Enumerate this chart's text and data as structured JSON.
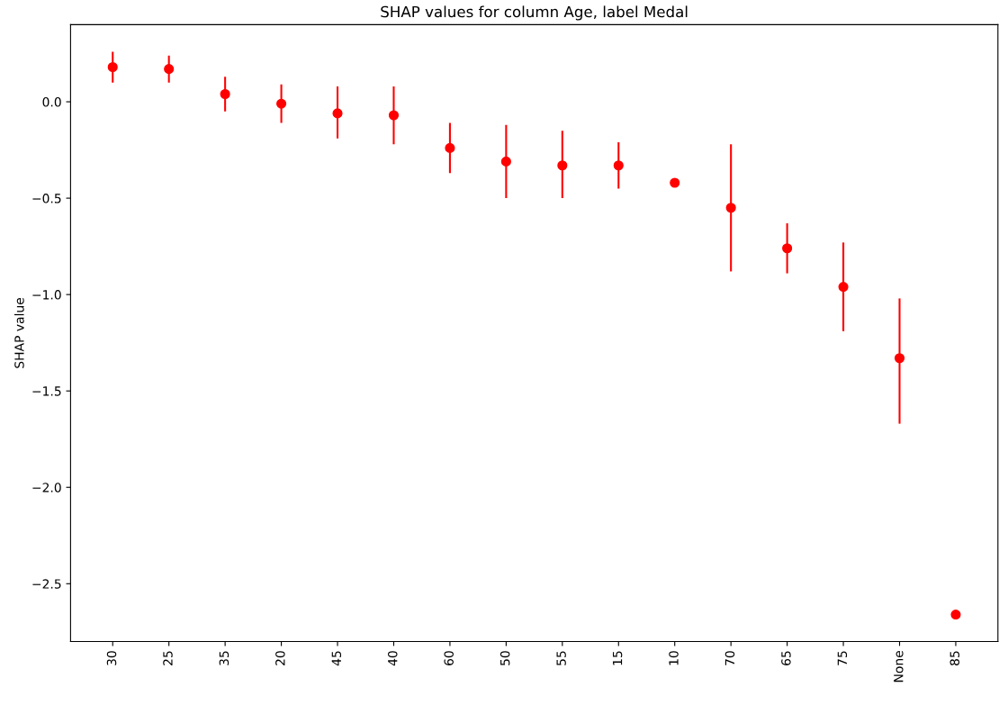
{
  "chart_data": {
    "type": "scatter",
    "title": "SHAP values for column Age, label Medal",
    "ylabel": "SHAP value",
    "categories": [
      "30",
      "25",
      "35",
      "20",
      "45",
      "40",
      "60",
      "50",
      "55",
      "15",
      "10",
      "70",
      "65",
      "75",
      "None",
      "85"
    ],
    "values": [
      0.18,
      0.17,
      0.04,
      -0.01,
      -0.06,
      -0.07,
      -0.24,
      -0.31,
      -0.33,
      -0.33,
      -0.42,
      -0.55,
      -0.76,
      -0.96,
      -1.33,
      -2.66
    ],
    "errors": [
      [
        0.1,
        0.26
      ],
      [
        0.1,
        0.24
      ],
      [
        -0.05,
        0.13
      ],
      [
        -0.11,
        0.09
      ],
      [
        -0.19,
        0.08
      ],
      [
        -0.22,
        0.08
      ],
      [
        -0.37,
        -0.11
      ],
      [
        -0.5,
        -0.12
      ],
      [
        -0.5,
        -0.15
      ],
      [
        -0.45,
        -0.21
      ],
      null,
      [
        -0.88,
        -0.22
      ],
      [
        -0.89,
        -0.63
      ],
      [
        -1.19,
        -0.73
      ],
      [
        -1.67,
        -1.02
      ],
      null
    ],
    "color": "#ff0000",
    "marker": "circle",
    "ylim": [
      -2.8,
      0.4
    ],
    "yticks": [
      {
        "value": 0.0,
        "label": "0.0"
      },
      {
        "value": -0.5,
        "label": "−0.5"
      },
      {
        "value": -1.0,
        "label": "−1.0"
      },
      {
        "value": -1.5,
        "label": "−1.5"
      },
      {
        "value": -2.0,
        "label": "−2.0"
      },
      {
        "value": -2.5,
        "label": "−2.5"
      }
    ]
  }
}
